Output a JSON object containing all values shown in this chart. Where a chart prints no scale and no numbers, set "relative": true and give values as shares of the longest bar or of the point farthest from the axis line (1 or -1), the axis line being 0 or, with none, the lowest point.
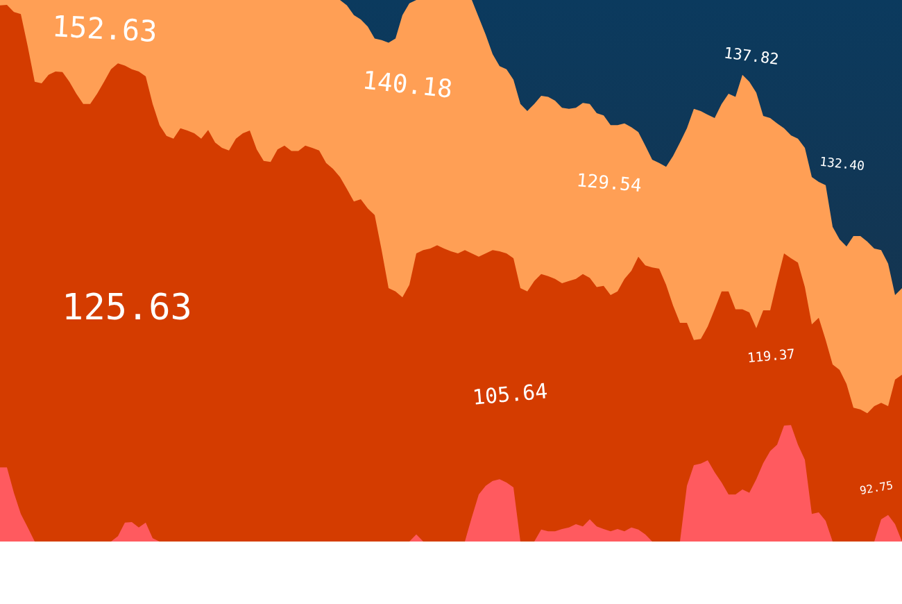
{
  "chart_data": {
    "type": "area",
    "relative": true,
    "categories": [
      null,
      null,
      null,
      null,
      null,
      null,
      null,
      null,
      null,
      null,
      null,
      null,
      null,
      null,
      null,
      null,
      null,
      null,
      null,
      null,
      null,
      null,
      null,
      null,
      null,
      null,
      null,
      null,
      null,
      null,
      null,
      null,
      null,
      null,
      null,
      null,
      null,
      null,
      null,
      null,
      null,
      null,
      null,
      null,
      null,
      null,
      null,
      null,
      null,
      null,
      null,
      null,
      null,
      null,
      null,
      null,
      null,
      null,
      null,
      null,
      null,
      null,
      null,
      null,
      null,
      null,
      null,
      null,
      null,
      null,
      null,
      null,
      null,
      null,
      null,
      null,
      null,
      null,
      null,
      null,
      null,
      null,
      null,
      null,
      null,
      null,
      null,
      null,
      null,
      null,
      null,
      null,
      null,
      null,
      null,
      null,
      null,
      null,
      null,
      null,
      null,
      null,
      null,
      null,
      null,
      null,
      null,
      null,
      null,
      null,
      null,
      null,
      null,
      null,
      null,
      null,
      null,
      null,
      null,
      null,
      null,
      null,
      null,
      null,
      null,
      null,
      null,
      null,
      null,
      null,
      null
    ],
    "series": [
      {
        "color": "#ff9f55",
        "values": [
          1,
          1,
          1,
          1,
          1,
          1,
          1,
          1,
          1,
          1,
          1,
          1,
          1,
          1,
          1,
          1,
          1,
          1,
          1,
          1,
          1,
          1,
          1,
          1,
          1,
          1,
          1,
          1,
          1,
          1,
          1,
          1,
          1,
          1,
          1,
          1,
          1,
          1,
          1,
          1,
          1,
          1,
          1,
          1,
          1,
          1,
          1,
          1,
          1,
          1,
          0.99,
          0.972,
          0.964,
          0.951,
          0.929,
          0.926,
          0.921,
          0.929,
          0.972,
          0.994,
          1,
          1,
          1,
          1,
          1,
          1,
          1,
          1,
          1,
          0.968,
          0.936,
          0.9,
          0.878,
          0.872,
          0.853,
          0.808,
          0.795,
          0.808,
          0.823,
          0.821,
          0.814,
          0.801,
          0.799,
          0.801,
          0.81,
          0.808,
          0.791,
          0.787,
          0.769,
          0.769,
          0.772,
          0.765,
          0.756,
          0.731,
          0.705,
          0.699,
          0.692,
          0.712,
          0.737,
          0.763,
          0.799,
          0.795,
          0.788,
          0.782,
          0.808,
          0.827,
          0.821,
          0.862,
          0.849,
          0.829,
          0.786,
          0.782,
          0.772,
          0.763,
          0.75,
          0.744,
          0.727,
          0.673,
          0.664,
          0.658,
          0.581,
          0.558,
          0.545,
          0.564,
          0.564,
          0.554,
          0.541,
          0.538,
          0.513,
          0.455,
          0.468
        ]
      },
      {
        "color": "#d43c00",
        "values": [
          0.99,
          0.991,
          0.978,
          0.974,
          0.914,
          0.849,
          0.846,
          0.862,
          0.868,
          0.867,
          0.849,
          0.827,
          0.808,
          0.808,
          0.827,
          0.849,
          0.872,
          0.883,
          0.879,
          0.872,
          0.868,
          0.859,
          0.808,
          0.769,
          0.749,
          0.744,
          0.763,
          0.759,
          0.754,
          0.744,
          0.76,
          0.737,
          0.727,
          0.722,
          0.744,
          0.754,
          0.759,
          0.724,
          0.703,
          0.701,
          0.724,
          0.731,
          0.721,
          0.721,
          0.731,
          0.727,
          0.722,
          0.699,
          0.688,
          0.673,
          0.651,
          0.628,
          0.632,
          0.615,
          0.603,
          0.538,
          0.468,
          0.462,
          0.451,
          0.474,
          0.532,
          0.538,
          0.541,
          0.547,
          0.541,
          0.536,
          0.532,
          0.538,
          0.532,
          0.526,
          0.532,
          0.538,
          0.536,
          0.532,
          0.523,
          0.468,
          0.462,
          0.481,
          0.494,
          0.49,
          0.485,
          0.477,
          0.481,
          0.485,
          0.494,
          0.487,
          0.47,
          0.472,
          0.455,
          0.462,
          0.485,
          0.5,
          0.526,
          0.51,
          0.506,
          0.504,
          0.474,
          0.436,
          0.404,
          0.404,
          0.372,
          0.374,
          0.397,
          0.429,
          0.462,
          0.462,
          0.429,
          0.429,
          0.423,
          0.394,
          0.427,
          0.427,
          0.481,
          0.532,
          0.523,
          0.515,
          0.47,
          0.401,
          0.413,
          0.372,
          0.327,
          0.317,
          0.291,
          0.247,
          0.244,
          0.237,
          0.25,
          0.256,
          0.25,
          0.299,
          0.308
        ]
      },
      {
        "color": "#ff5a5f",
        "values": [
          0.137,
          0.137,
          0.09,
          0.051,
          0.026,
          0,
          0,
          0,
          0,
          0,
          0,
          0,
          0,
          0,
          0,
          0,
          0,
          0.01,
          0.035,
          0.036,
          0.026,
          0.035,
          0.006,
          0,
          0,
          0,
          0,
          0,
          0,
          0,
          0,
          0,
          0,
          0,
          0,
          0,
          0,
          0,
          0,
          0,
          0,
          0,
          0,
          0,
          0,
          0,
          0,
          0,
          0,
          0,
          0,
          0,
          0,
          0,
          0,
          0,
          0,
          0,
          0,
          0,
          0.013,
          0,
          0,
          0,
          0,
          0,
          0,
          0,
          0.045,
          0.087,
          0.103,
          0.112,
          0.115,
          0.109,
          0.1,
          0,
          0,
          0,
          0.022,
          0.019,
          0.019,
          0.023,
          0.026,
          0.032,
          0.028,
          0.041,
          0.028,
          0.023,
          0.019,
          0.023,
          0.019,
          0.026,
          0.022,
          0.013,
          0,
          0,
          0,
          0,
          0,
          0.103,
          0.141,
          0.144,
          0.15,
          0.128,
          0.109,
          0.087,
          0.087,
          0.096,
          0.09,
          0.115,
          0.145,
          0.167,
          0.179,
          0.214,
          0.215,
          0.179,
          0.151,
          0.051,
          0.054,
          0.038,
          0,
          0,
          0,
          0,
          0,
          0,
          0,
          0.041,
          0.049,
          0.032,
          0
        ]
      }
    ],
    "annotations": [
      "152.63",
      "140.18",
      "137.82",
      "132.40",
      "129.54",
      "125.63",
      "119.37",
      "105.64",
      "92.75"
    ]
  }
}
